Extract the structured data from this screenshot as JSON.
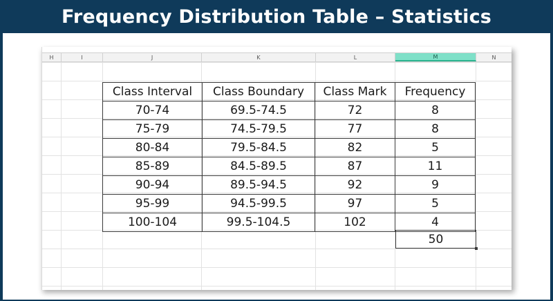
{
  "banner": {
    "title": "Frequency Distribution Table – Statistics"
  },
  "spreadsheet": {
    "columns": [
      {
        "label": "H",
        "width": 28,
        "selected": false
      },
      {
        "label": "I",
        "width": 60,
        "selected": false
      },
      {
        "label": "J",
        "width": 143,
        "selected": false
      },
      {
        "label": "K",
        "width": 165,
        "selected": false
      },
      {
        "label": "L",
        "width": 115,
        "selected": false
      },
      {
        "label": "M",
        "width": 117,
        "selected": true
      },
      {
        "label": "N",
        "width": 52,
        "selected": false
      }
    ]
  },
  "table": {
    "headers": [
      "Class Interval",
      "Class Boundary",
      "Class Mark",
      "Frequency"
    ],
    "rows": [
      [
        "70-74",
        "69.5-74.5",
        "72",
        "8"
      ],
      [
        "75-79",
        "74.5-79.5",
        "77",
        "8"
      ],
      [
        "80-84",
        "79.5-84.5",
        "82",
        "5"
      ],
      [
        "85-89",
        "84.5-89.5",
        "87",
        "11"
      ],
      [
        "90-94",
        "89.5-94.5",
        "92",
        "9"
      ],
      [
        "95-99",
        "94.5-99.5",
        "97",
        "5"
      ],
      [
        "100-104",
        "99.5-104.5",
        "102",
        "4"
      ]
    ],
    "total": "50"
  },
  "colors": {
    "banner": "#0f3a5a",
    "selected_column": "#7fe0c8"
  }
}
